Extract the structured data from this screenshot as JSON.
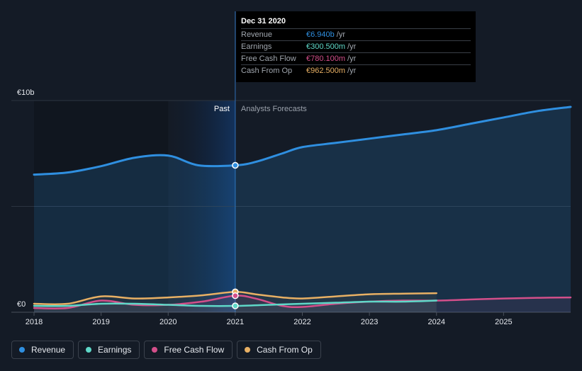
{
  "tooltip": {
    "date": "Dec 31 2020",
    "rows": [
      {
        "label": "Revenue",
        "value": "€6.940b",
        "unit": "/yr",
        "color": "#2f8fe0"
      },
      {
        "label": "Earnings",
        "value": "€300.500m",
        "unit": "/yr",
        "color": "#5fd8c8"
      },
      {
        "label": "Free Cash Flow",
        "value": "€780.100m",
        "unit": "/yr",
        "color": "#d34f8a"
      },
      {
        "label": "Cash From Op",
        "value": "€962.500m",
        "unit": "/yr",
        "color": "#e8b064"
      }
    ]
  },
  "legend": [
    {
      "label": "Revenue",
      "color": "#2f8fe0"
    },
    {
      "label": "Earnings",
      "color": "#5fd8c8"
    },
    {
      "label": "Free Cash Flow",
      "color": "#d34f8a"
    },
    {
      "label": "Cash From Op",
      "color": "#e8b064"
    }
  ],
  "chart_data": {
    "type": "line",
    "y_axis_labels": {
      "top": "€10b",
      "bottom": "€0"
    },
    "ylim": [
      0,
      10
    ],
    "y_unit": "€b",
    "xlim": [
      2018.0,
      2026.0
    ],
    "x_ticks": [
      "2018",
      "2019",
      "2020",
      "2021",
      "2022",
      "2023",
      "2024",
      "2025"
    ],
    "past_label": "Past",
    "forecast_label": "Analysts Forecasts",
    "past_end_x": 2021.0,
    "highlight_x": 2021.0,
    "grid": true,
    "legend_position": "bottom-left",
    "series": [
      {
        "name": "Revenue",
        "color": "#2f8fe0",
        "x": [
          2018.0,
          2018.5,
          2019.0,
          2019.5,
          2020.0,
          2020.45,
          2021.0,
          2021.3,
          2021.7,
          2022.0,
          2022.5,
          2023.0,
          2023.5,
          2024.0,
          2024.5,
          2025.0,
          2025.5,
          2026.0
        ],
        "y": [
          6.5,
          6.6,
          6.9,
          7.3,
          7.4,
          6.94,
          6.94,
          7.1,
          7.5,
          7.8,
          8.0,
          8.2,
          8.4,
          8.6,
          8.9,
          9.2,
          9.5,
          9.7
        ]
      },
      {
        "name": "Earnings",
        "color": "#5fd8c8",
        "x": [
          2018.0,
          2018.5,
          2019.0,
          2019.5,
          2020.0,
          2020.5,
          2021.0,
          2021.5,
          2022.0,
          2022.5,
          2023.0,
          2023.5,
          2024.0
        ],
        "y": [
          0.3,
          0.3,
          0.4,
          0.4,
          0.35,
          0.3,
          0.3,
          0.35,
          0.4,
          0.45,
          0.5,
          0.5,
          0.55
        ]
      },
      {
        "name": "Free Cash Flow",
        "color": "#d34f8a",
        "x": [
          2018.0,
          2018.5,
          2019.0,
          2019.5,
          2020.0,
          2020.5,
          2021.0,
          2021.3,
          2021.7,
          2022.0,
          2022.5,
          2023.0,
          2023.5,
          2024.0,
          2024.5,
          2025.0,
          2025.5,
          2026.0
        ],
        "y": [
          0.2,
          0.2,
          0.55,
          0.35,
          0.35,
          0.5,
          0.78,
          0.65,
          0.3,
          0.25,
          0.4,
          0.5,
          0.55,
          0.55,
          0.6,
          0.65,
          0.68,
          0.7
        ]
      },
      {
        "name": "Cash From Op",
        "color": "#e8b064",
        "x": [
          2018.0,
          2018.5,
          2019.0,
          2019.5,
          2020.0,
          2020.5,
          2021.0,
          2021.3,
          2021.7,
          2022.0,
          2022.5,
          2023.0,
          2023.5,
          2024.0
        ],
        "y": [
          0.4,
          0.4,
          0.75,
          0.65,
          0.7,
          0.8,
          0.96,
          0.85,
          0.7,
          0.65,
          0.75,
          0.85,
          0.88,
          0.9
        ]
      }
    ]
  }
}
